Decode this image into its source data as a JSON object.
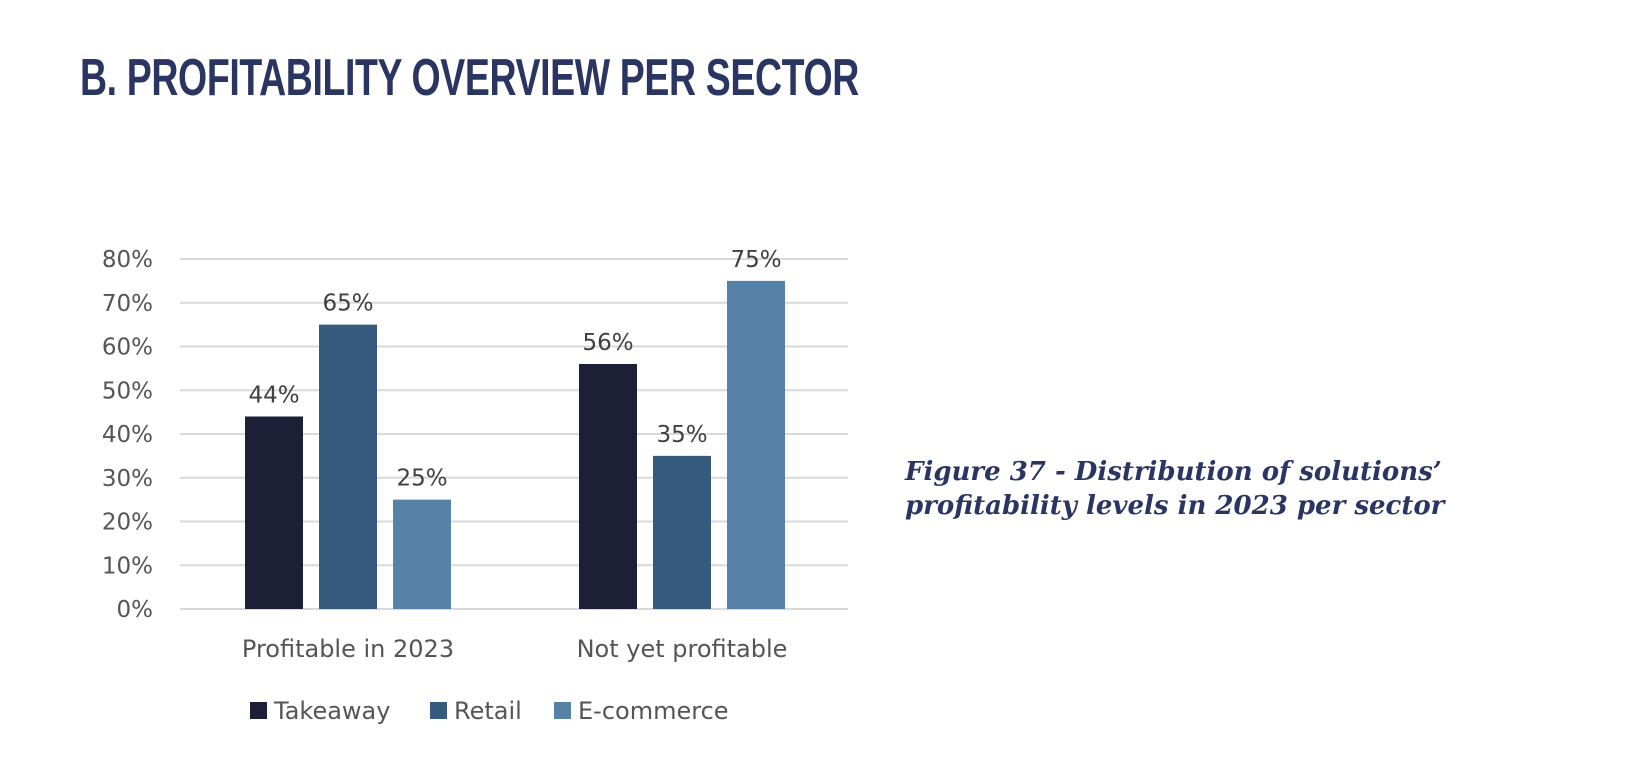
{
  "page_title": "B. PROFITABILITY OVERVIEW PER SECTOR",
  "caption": "Figure 37 - Distribution of solutions’ profitability levels in 2023 per sector",
  "chart_data": {
    "type": "bar",
    "categories": [
      "Profitable in 2023",
      "Not yet profitable"
    ],
    "series": [
      {
        "name": "Takeaway",
        "values": [
          44,
          56
        ],
        "color": "#1c1f35"
      },
      {
        "name": "Retail",
        "values": [
          65,
          35
        ],
        "color": "#36597e"
      },
      {
        "name": "E-commerce",
        "values": [
          25,
          75
        ],
        "color": "#5582a6"
      }
    ],
    "data_labels": [
      [
        "44%",
        "56%"
      ],
      [
        "65%",
        "35%"
      ],
      [
        "25%",
        "75%"
      ]
    ],
    "y_ticks": [
      "0%",
      "10%",
      "20%",
      "30%",
      "40%",
      "50%",
      "60%",
      "70%",
      "80%"
    ],
    "ylim": [
      0,
      80
    ],
    "grid": true,
    "legend_position": "bottom"
  }
}
